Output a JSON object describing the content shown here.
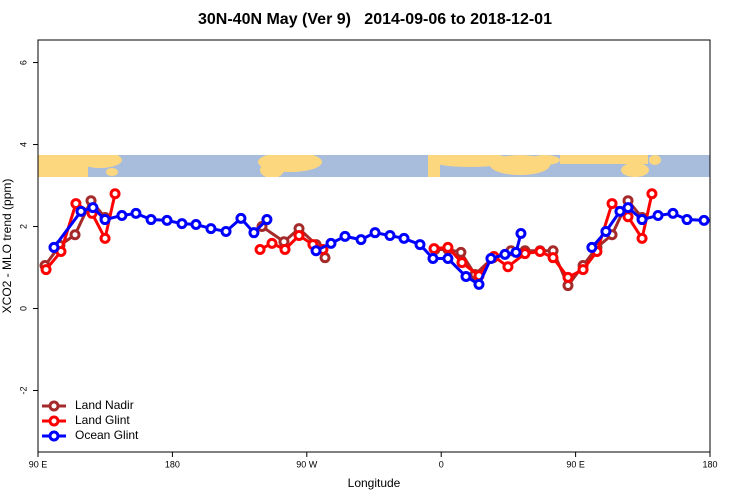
{
  "chart_data": {
    "type": "line",
    "title": "30N-40N May (Ver 9)   2014-09-06 to 2018-12-01",
    "x_label": "Longitude",
    "y_label": "XCO2 - MLO trend (ppm)",
    "xlim": [
      90,
      540
    ],
    "ylim": [
      -3.5,
      6.55
    ],
    "xticks": [
      {
        "value": 90,
        "label": "90 E"
      },
      180,
      {
        "value": 270,
        "label": "90 W"
      },
      {
        "value": 360,
        "label": "0"
      },
      {
        "value": 450,
        "label": "90 E"
      },
      {
        "value": 540,
        "label": "180"
      }
    ],
    "yticks": [
      -2,
      0,
      2,
      4,
      6
    ],
    "legend": "bottomleft",
    "series": [
      {
        "name": "Land Nadir",
        "color": "#a52a2a",
        "x": [
          94.7,
          104.7,
          114.8,
          125.5,
          134.9,
          null,
          240.0,
          254.7,
          264.8,
          276.2,
          282.2,
          null,
          355.8,
          364.5,
          373.2,
          382.6,
          394.7,
          406.7,
          416.1,
          426.2,
          434.9,
          444.9,
          455.0,
          464.3,
          474.4,
          485.1,
          494.5
        ],
        "values": [
          1.05,
          1.54,
          1.8,
          2.63,
          2.22,
          null,
          2.0,
          1.63,
          1.95,
          1.56,
          1.24,
          null,
          1.44,
          1.44,
          1.37,
          0.83,
          1.24,
          1.41,
          1.41,
          1.41,
          1.41,
          0.56,
          1.05,
          1.49,
          1.8,
          2.63,
          2.22
        ]
      },
      {
        "name": "Land Glint",
        "color": "#ff0000",
        "x": [
          95.4,
          105.4,
          115.4,
          126.2,
          134.9,
          141.6,
          null,
          238.7,
          246.7,
          255.4,
          264.8,
          274.1,
          280.8,
          null,
          355.2,
          364.5,
          373.9,
          385.3,
          395.3,
          404.7,
          416.1,
          426.2,
          434.9,
          444.9,
          455.0,
          464.3,
          474.4,
          485.1,
          494.5,
          501.1
        ],
        "values": [
          0.95,
          1.39,
          2.56,
          2.32,
          1.71,
          2.8,
          null,
          1.44,
          1.59,
          1.44,
          1.78,
          1.56,
          1.44,
          null,
          1.46,
          1.49,
          1.12,
          0.8,
          1.27,
          1.02,
          1.34,
          1.39,
          1.24,
          0.76,
          0.95,
          1.39,
          2.56,
          2.24,
          1.71,
          2.8
        ]
      },
      {
        "name": "Ocean Glint",
        "color": "#0000ff",
        "x": [
          100.7,
          118.8,
          126.8,
          134.9,
          146.2,
          155.6,
          165.7,
          176.4,
          186.4,
          195.8,
          205.8,
          215.9,
          225.9,
          234.6,
          243.3,
          null,
          276.2,
          286.2,
          295.6,
          306.3,
          315.7,
          325.7,
          335.1,
          345.8,
          354.5,
          364.5,
          376.6,
          385.3,
          393.3,
          402.7,
          410.1,
          413.4,
          null,
          460.9,
          470.3,
          479.7,
          485.1,
          494.5,
          505.2,
          515.2,
          524.6,
          536.0
        ],
        "values": [
          1.49,
          2.37,
          2.46,
          2.17,
          2.27,
          2.32,
          2.17,
          2.15,
          2.07,
          2.05,
          1.95,
          1.88,
          2.2,
          1.85,
          2.17,
          null,
          1.41,
          1.59,
          1.76,
          1.68,
          1.85,
          1.78,
          1.71,
          1.56,
          1.22,
          1.22,
          0.78,
          0.59,
          1.22,
          1.32,
          1.37,
          1.83,
          null,
          1.49,
          1.88,
          2.37,
          2.46,
          2.17,
          2.27,
          2.32,
          2.17,
          2.15
        ]
      }
    ]
  }
}
